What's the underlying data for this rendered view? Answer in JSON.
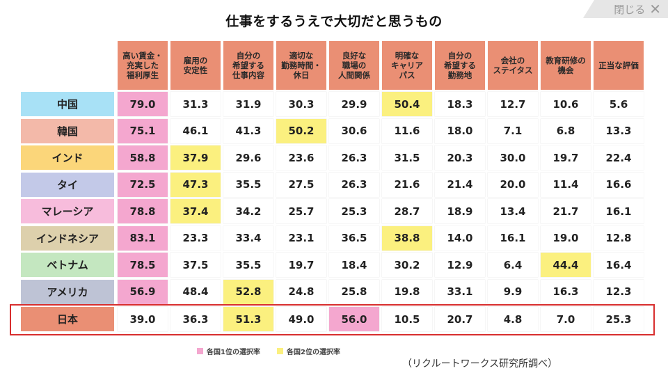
{
  "title": "仕事をするうえで大切だと思うもの",
  "close_label": "閉じる",
  "close_icon": "close-icon",
  "colors": {
    "header": "#ea8f74",
    "first_place": "#f4a7cf",
    "second_place": "#fbf07f",
    "highlight_border": "#d82e2e"
  },
  "legend": {
    "first": "各国1位の選択率",
    "second": "各国2位の選択率"
  },
  "source": "（リクルートワークス研究所調べ）",
  "chart_data": {
    "type": "table",
    "title": "仕事をするうえで大切だと思うもの",
    "columns": [
      "高い賃金・\n充実した\n福利厚生",
      "雇用の\n安定性",
      "自分の\n希望する\n仕事内容",
      "適切な\n勤務時間・\n休日",
      "良好な\n職場の\n人間関係",
      "明確な\nキャリア\nパス",
      "自分の\n希望する\n勤務地",
      "会社の\nステイタス",
      "教育研修の\n機会",
      "正当な評価"
    ],
    "rows": [
      {
        "country": "中国",
        "color": "#a8e1f6",
        "values": [
          79.0,
          31.3,
          31.9,
          30.3,
          29.9,
          50.4,
          18.3,
          12.7,
          10.6,
          5.6
        ],
        "first": 0,
        "second": 5
      },
      {
        "country": "韓国",
        "color": "#f3b9a9",
        "values": [
          75.1,
          46.1,
          41.3,
          50.2,
          30.6,
          11.6,
          18.0,
          7.1,
          6.8,
          13.3
        ],
        "first": 0,
        "second": 3
      },
      {
        "country": "インド",
        "color": "#fbd67a",
        "values": [
          58.8,
          37.9,
          29.6,
          23.6,
          26.3,
          31.5,
          20.3,
          30.0,
          19.7,
          22.4
        ],
        "first": 0,
        "second": 1
      },
      {
        "country": "タイ",
        "color": "#c3c9e8",
        "values": [
          72.5,
          47.3,
          35.5,
          27.5,
          26.3,
          21.6,
          21.4,
          20.0,
          11.4,
          16.6
        ],
        "first": 0,
        "second": 1
      },
      {
        "country": "マレーシア",
        "color": "#f7bcdc",
        "values": [
          78.8,
          37.4,
          34.2,
          25.7,
          25.3,
          28.7,
          18.9,
          13.4,
          21.7,
          16.1
        ],
        "first": 0,
        "second": 1
      },
      {
        "country": "インドネシア",
        "color": "#ddd0ac",
        "values": [
          83.1,
          23.3,
          33.4,
          23.1,
          36.5,
          38.8,
          14.0,
          16.1,
          19.0,
          12.8
        ],
        "first": 0,
        "second": 5
      },
      {
        "country": "ベトナム",
        "color": "#c4e7c0",
        "values": [
          78.5,
          37.5,
          35.5,
          19.7,
          18.4,
          30.2,
          12.9,
          6.4,
          44.4,
          16.4
        ],
        "first": 0,
        "second": 8
      },
      {
        "country": "アメリカ",
        "color": "#bec3d5",
        "values": [
          56.9,
          48.4,
          52.8,
          24.8,
          25.8,
          19.8,
          33.1,
          9.9,
          16.3,
          12.3
        ],
        "first": 0,
        "second": 2
      },
      {
        "country": "日本",
        "color": "#ea8f74",
        "values": [
          39.0,
          36.3,
          51.3,
          49.0,
          56.0,
          10.5,
          20.7,
          4.8,
          7.0,
          25.3
        ],
        "first": 4,
        "second": 2
      }
    ],
    "highlighted_row": "日本"
  }
}
